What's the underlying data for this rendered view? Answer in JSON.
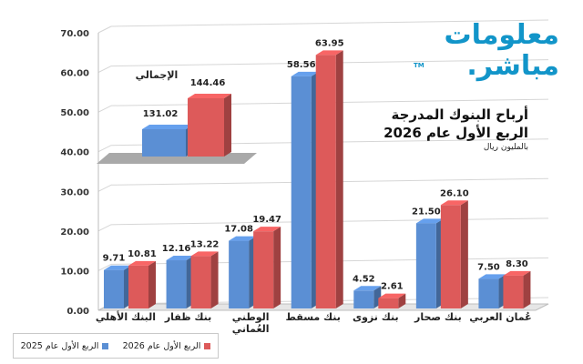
{
  "brand": {
    "line1": "معلومات",
    "line2": "مباشر.",
    "tm": "TM"
  },
  "title": "أرباح البنوك المدرجة",
  "title_line2": "الربع الأول عام 2026",
  "subtitle": "بالمليون ريال",
  "colors": {
    "q1_2025": "#5b8fd4",
    "q1_2026": "#dd5a5a"
  },
  "chart_data": [
    {
      "type": "bar",
      "categories": [
        "البنك الأهلي",
        "بنك ظفار",
        "الوطني العُماني",
        "بنك مسقط",
        "بنك نزوى",
        "بنك صحار",
        "عُمان العربي"
      ],
      "series": [
        {
          "name": "الربع الأول عام 2025",
          "values": [
            9.71,
            12.16,
            17.08,
            58.56,
            4.52,
            21.5,
            7.5
          ]
        },
        {
          "name": "الربع الأول عام 2026",
          "values": [
            10.81,
            13.22,
            19.47,
            63.95,
            2.61,
            26.1,
            8.3
          ]
        }
      ],
      "ylim": [
        0,
        70
      ],
      "yticks": [
        "0.00",
        "10.00",
        "20.00",
        "30.00",
        "40.00",
        "50.00",
        "60.00",
        "70.00"
      ],
      "grid": true,
      "legend_position": "bottom-left"
    },
    {
      "type": "bar",
      "title": "الإجمالي",
      "series": [
        {
          "name": "الربع الأول عام 2025",
          "values": [
            131.02
          ]
        },
        {
          "name": "الربع الأول عام 2026",
          "values": [
            144.46
          ]
        }
      ]
    }
  ]
}
